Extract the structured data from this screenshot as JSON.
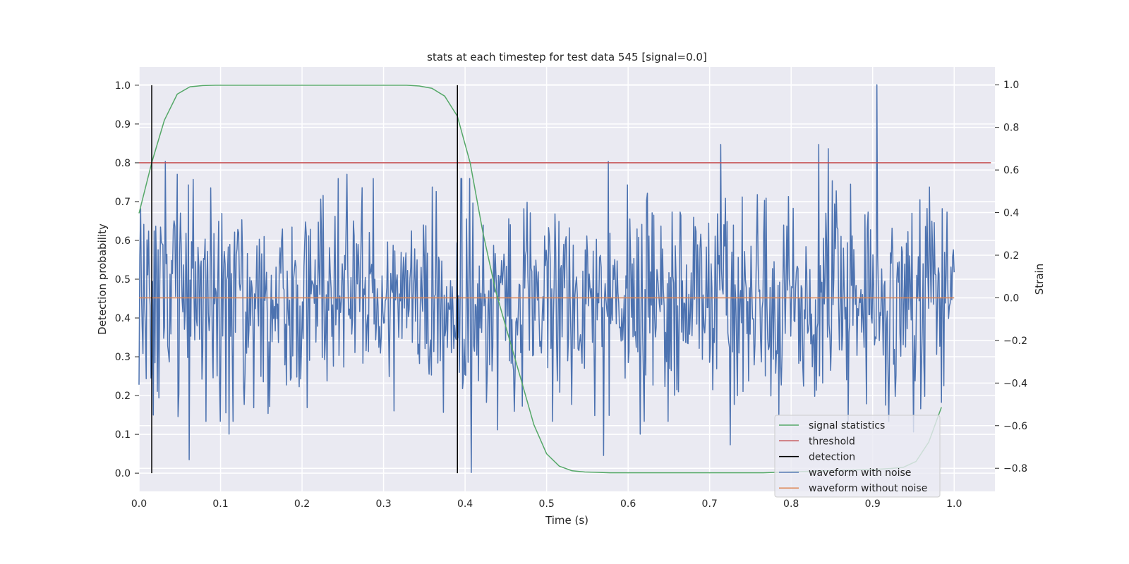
{
  "chart_data": {
    "type": "line",
    "title": "stats at each timestep for test data 545 [signal=0.0]",
    "xlabel": "Time (s)",
    "ylabel": "Detection probability",
    "y2label": "Strain",
    "xlim": [
      0.0,
      1.05
    ],
    "ylim": [
      -0.047,
      1.047
    ],
    "y2lim": [
      -0.9085,
      1.0835
    ],
    "grid": true,
    "xticks": [
      0.0,
      0.1,
      0.2,
      0.3,
      0.4,
      0.5,
      0.6,
      0.7,
      0.8,
      0.9,
      1.0
    ],
    "xtick_labels": [
      "0.0",
      "0.1",
      "0.2",
      "0.3",
      "0.4",
      "0.5",
      "0.6",
      "0.7",
      "0.8",
      "0.9",
      "1.0"
    ],
    "yticks": [
      0.0,
      0.1,
      0.2,
      0.3,
      0.4,
      0.5,
      0.6,
      0.7,
      0.8,
      0.9,
      1.0
    ],
    "ytick_labels": [
      "0.0",
      "0.1",
      "0.2",
      "0.3",
      "0.4",
      "0.5",
      "0.6",
      "0.7",
      "0.8",
      "0.9",
      "1.0"
    ],
    "y2ticks": [
      -0.8,
      -0.6,
      -0.4,
      -0.2,
      0.0,
      0.2,
      0.4,
      0.6,
      0.8,
      1.0
    ],
    "y2tick_labels": [
      "−0.8",
      "−0.6",
      "−0.4",
      "−0.2",
      "0.0",
      "0.2",
      "0.4",
      "0.6",
      "0.8",
      "1.0"
    ],
    "legend_position": "bottom-right",
    "series": [
      {
        "name": "signal statistics",
        "color": "#55a868",
        "axis": "left",
        "x": [
          0.0,
          0.0156,
          0.0312,
          0.0469,
          0.0625,
          0.0781,
          0.0938,
          0.1094,
          0.125,
          0.1406,
          0.1562,
          0.1719,
          0.1875,
          0.2031,
          0.2188,
          0.2344,
          0.25,
          0.2656,
          0.2812,
          0.2969,
          0.3125,
          0.3281,
          0.3438,
          0.3594,
          0.375,
          0.3906,
          0.4062,
          0.4219,
          0.4375,
          0.4531,
          0.4688,
          0.4844,
          0.5,
          0.5156,
          0.5312,
          0.5469,
          0.5625,
          0.5781,
          0.5938,
          0.6094,
          0.625,
          0.6406,
          0.6562,
          0.6719,
          0.6875,
          0.7031,
          0.7188,
          0.7344,
          0.75,
          0.7656,
          0.7812,
          0.7969,
          0.8125,
          0.8281,
          0.8438,
          0.8594,
          0.875,
          0.8906,
          0.9062,
          0.9219,
          0.9375,
          0.9531,
          0.9688,
          0.9844
        ],
        "values": [
          0.67,
          0.8,
          0.91,
          0.977,
          0.996,
          0.999,
          1.0,
          1.0,
          1.0,
          1.0,
          1.0,
          1.0,
          1.0,
          1.0,
          1.0,
          1.0,
          1.0,
          1.0,
          1.0,
          1.0,
          1.0,
          1.0,
          0.998,
          0.992,
          0.972,
          0.92,
          0.8,
          0.62,
          0.47,
          0.355,
          0.24,
          0.125,
          0.05,
          0.018,
          0.006,
          0.003,
          0.002,
          0.001,
          0.001,
          0.001,
          0.001,
          0.001,
          0.001,
          0.001,
          0.001,
          0.001,
          0.001,
          0.001,
          0.001,
          0.001,
          0.002,
          0.003,
          0.004,
          0.005,
          0.006,
          0.007,
          0.008,
          0.009,
          0.01,
          0.012,
          0.015,
          0.03,
          0.08,
          0.17
        ]
      },
      {
        "name": "threshold",
        "color": "#c44e52",
        "axis": "left",
        "x": [
          0.0,
          1.045
        ],
        "values": [
          0.8,
          0.8
        ]
      },
      {
        "name": "detection",
        "color": "#000000",
        "axis": "left",
        "segments": [
          {
            "x": 0.0156,
            "y0": 0.0,
            "y1": 1.0
          },
          {
            "x": 0.3906,
            "y0": 0.0,
            "y1": 1.0
          }
        ]
      },
      {
        "name": "waveform with noise",
        "color": "#4c72b0",
        "axis": "right",
        "x_start": 0.0,
        "x_end": 1.0,
        "n_points": 1024,
        "sigma": 0.24,
        "seed": 545,
        "peaks": [
          {
            "x": 0.009,
            "value": -0.38
          },
          {
            "x": 0.018,
            "value": -0.55
          },
          {
            "x": 0.024,
            "value": -0.47
          },
          {
            "x": 0.032,
            "value": 0.64
          },
          {
            "x": 0.047,
            "value": 0.58
          },
          {
            "x": 0.061,
            "value": 0.53
          },
          {
            "x": 0.062,
            "value": -0.76
          },
          {
            "x": 0.107,
            "value": -0.54
          },
          {
            "x": 0.11,
            "value": -0.64
          },
          {
            "x": 0.16,
            "value": -0.51
          },
          {
            "x": 0.255,
            "value": 0.58
          },
          {
            "x": 0.36,
            "value": 0.52
          },
          {
            "x": 0.393,
            "value": -0.35
          },
          {
            "x": 0.408,
            "value": -0.82
          },
          {
            "x": 0.44,
            "value": -0.62
          },
          {
            "x": 0.57,
            "value": -0.74
          },
          {
            "x": 0.576,
            "value": 0.64
          },
          {
            "x": 0.615,
            "value": -0.64
          },
          {
            "x": 0.714,
            "value": 0.72
          },
          {
            "x": 0.725,
            "value": -0.69
          },
          {
            "x": 0.834,
            "value": 0.72
          },
          {
            "x": 0.846,
            "value": 0.7
          },
          {
            "x": 0.87,
            "value": -0.58
          },
          {
            "x": 0.905,
            "value": 1.0
          },
          {
            "x": 0.95,
            "value": -0.63
          },
          {
            "x": 0.97,
            "value": 0.52
          }
        ]
      },
      {
        "name": "waveform without noise",
        "color": "#dd8452",
        "axis": "right",
        "x": [
          0.0,
          1.0
        ],
        "values": [
          0.0,
          0.0
        ]
      }
    ]
  }
}
